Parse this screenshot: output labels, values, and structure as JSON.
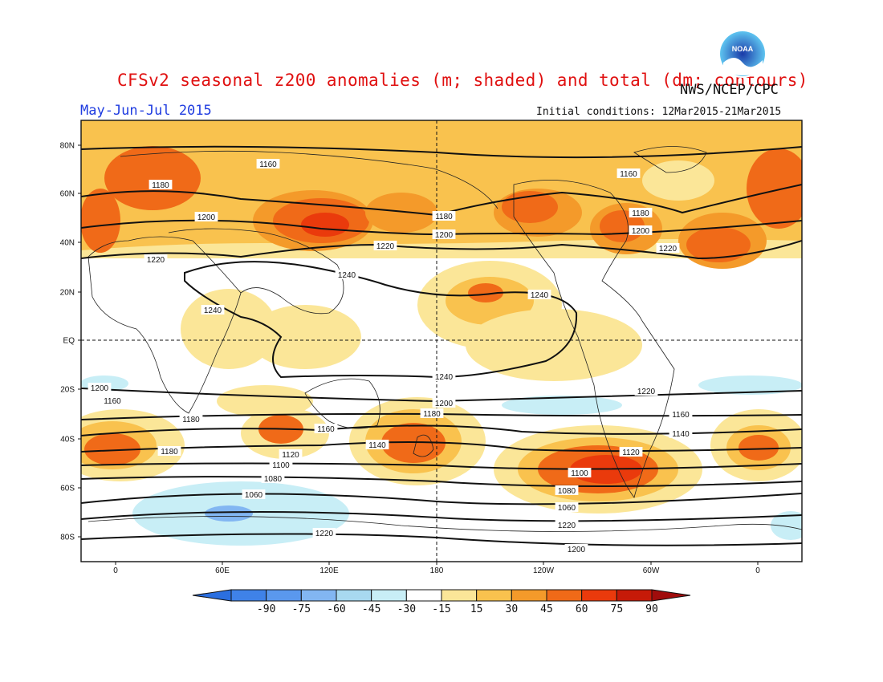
{
  "header": {
    "title": "CFSv2 seasonal z200 anomalies (m; shaded) and total (dm; contours)",
    "agency": "NWS/NCEP/CPC",
    "season": "May-Jun-Jul 2015",
    "initial_conditions": "Initial conditions: 12Mar2015-21Mar2015",
    "logo_text": "NOAA"
  },
  "axes": {
    "lat_labels": [
      "80N",
      "60N",
      "40N",
      "20N",
      "EQ",
      "20S",
      "40S",
      "60S",
      "80S"
    ],
    "lon_labels": [
      "0",
      "60E",
      "120E",
      "180",
      "120W",
      "60W",
      "0"
    ]
  },
  "legend": {
    "values": [
      "-90",
      "-75",
      "-60",
      "-45",
      "-30",
      "-15",
      "15",
      "30",
      "45",
      "60",
      "75",
      "90"
    ],
    "colors": [
      "#2b6fe0",
      "#3f82e8",
      "#5a98ee",
      "#82b6f2",
      "#a8d9f0",
      "#c8eef6",
      "#ffffff",
      "#fbe698",
      "#f9c24e",
      "#f49a2a",
      "#f06a18",
      "#ea3a0c",
      "#c61a08",
      "#a00c0c"
    ]
  },
  "contours": {
    "labels": [
      "1160",
      "1180",
      "1200",
      "1220",
      "1240",
      "1240",
      "1240",
      "1180",
      "1200",
      "1220",
      "1160",
      "1180",
      "1200",
      "1220",
      "1240",
      "1220",
      "1200",
      "1180",
      "1160",
      "1140",
      "1120",
      "1100",
      "1080",
      "1060",
      "1220",
      "1200",
      "1180",
      "1160",
      "1140",
      "1120",
      "1100",
      "1080",
      "1060",
      "1220",
      "1200",
      "1180",
      "1160"
    ]
  }
}
